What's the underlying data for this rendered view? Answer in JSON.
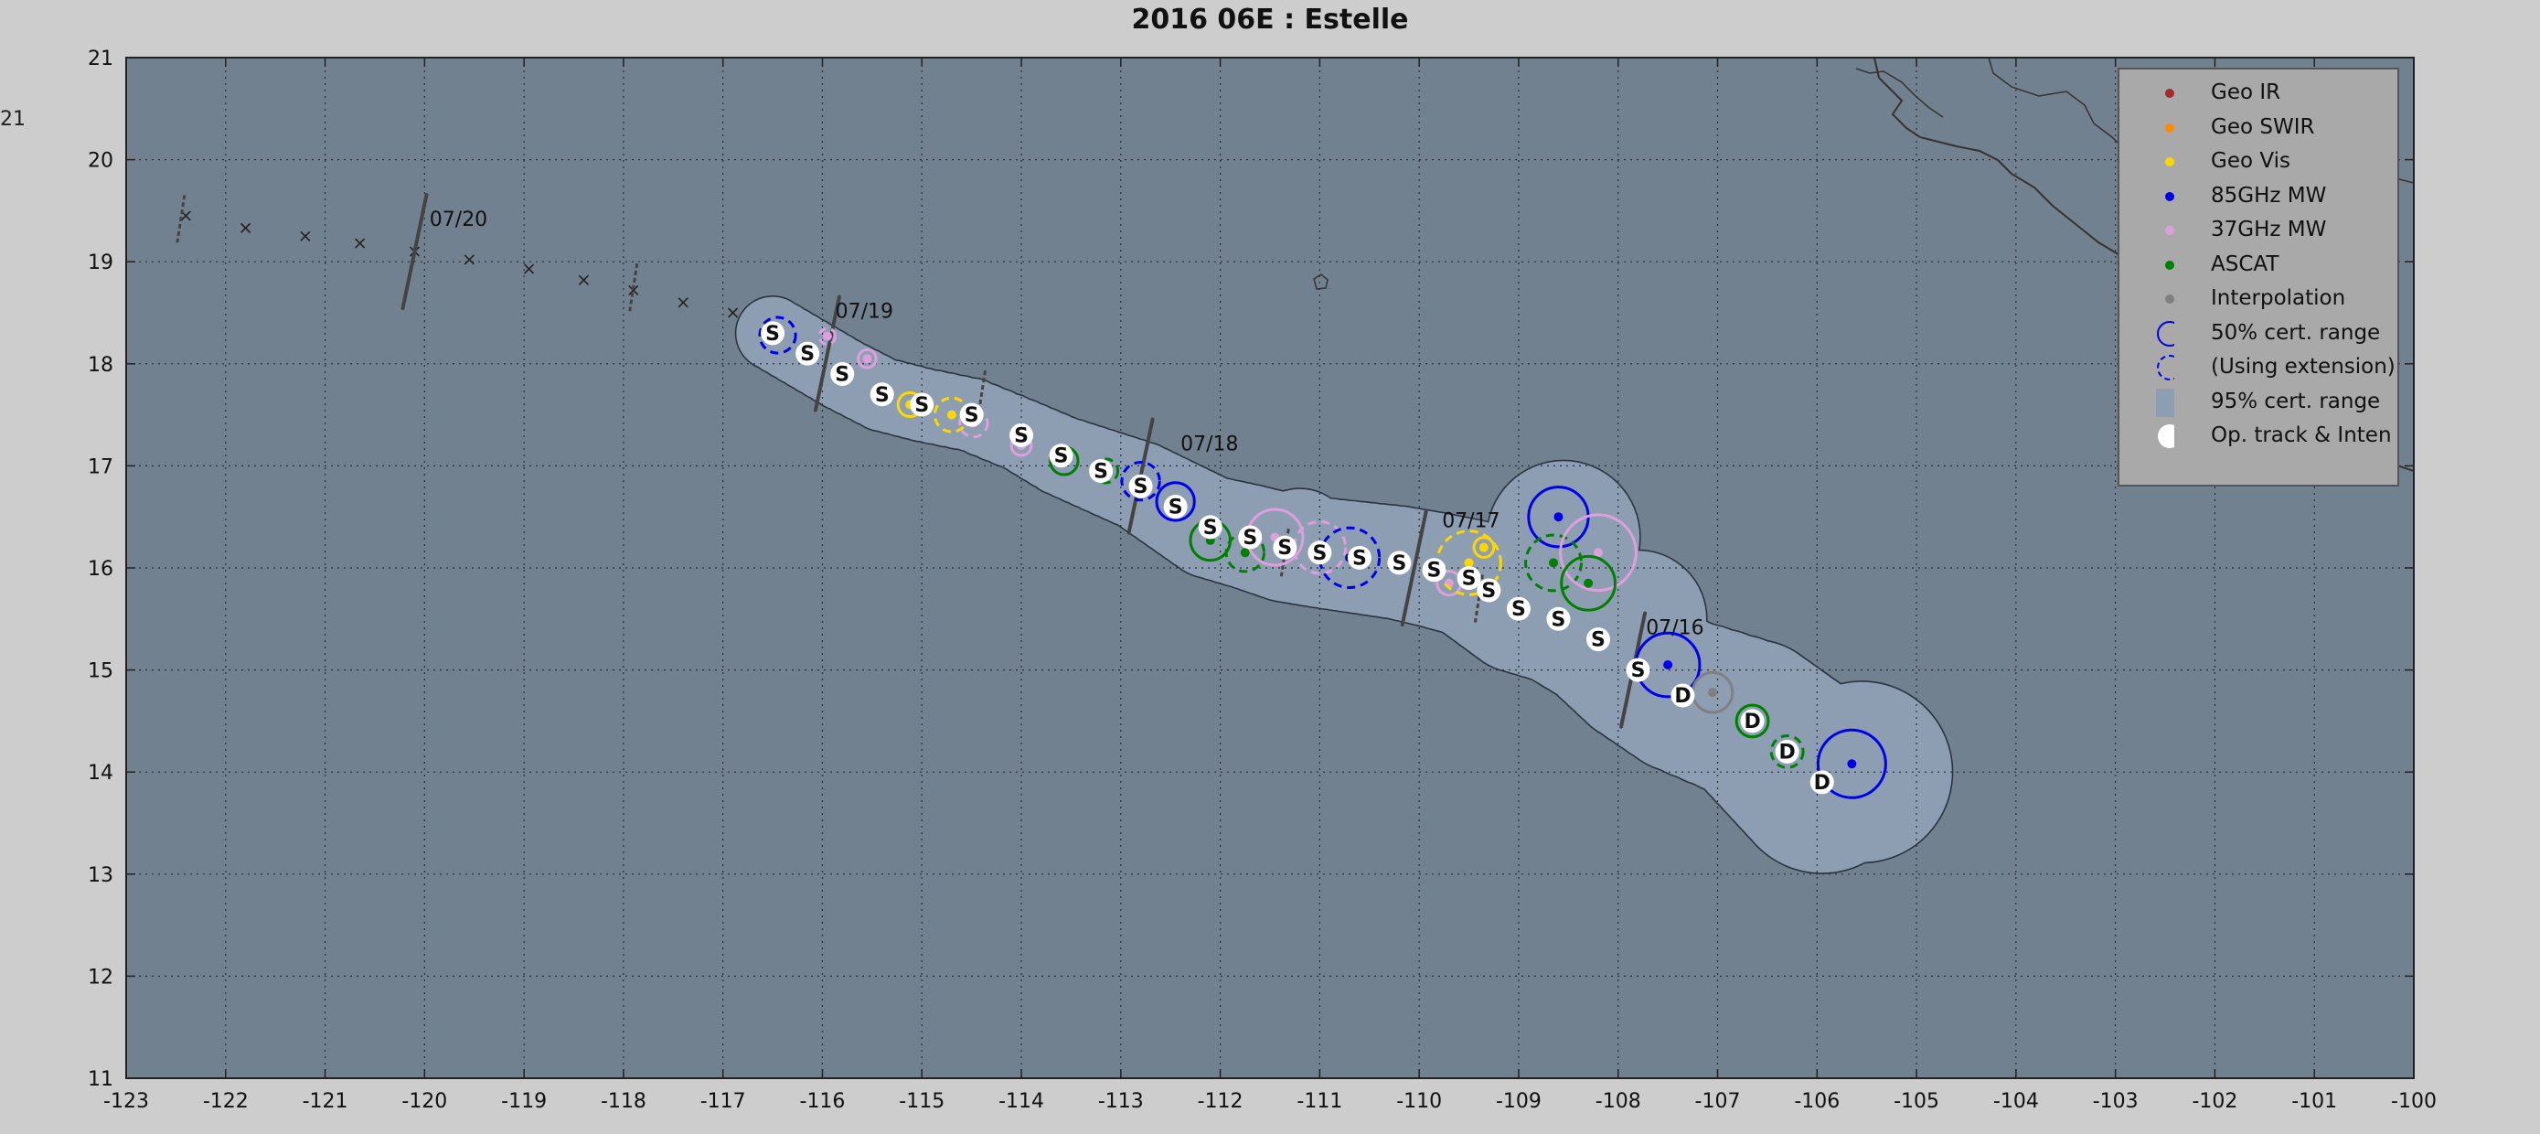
{
  "title": "2016  06E :  Estelle",
  "stray_label": "21",
  "colors": {
    "ocean": "#72818f",
    "uncertainty": "#8d9eb2",
    "land_line": "#333333",
    "geo_ir": "#a52a2a",
    "geo_swir": "#ff8c00",
    "geo_vis": "#ffd700",
    "mw85": "#0000ee",
    "mw37": "#dda0dd",
    "ascat": "#008000",
    "interp": "#808080"
  },
  "axes": {
    "lon_min": -123,
    "lon_max": -100,
    "lat_min": 11,
    "lat_max": 21,
    "lon_ticks": [
      "-123",
      "-122",
      "-121",
      "-120",
      "-119",
      "-118",
      "-117",
      "-116",
      "-115",
      "-114",
      "-113",
      "-112",
      "-111",
      "-110",
      "-109",
      "-108",
      "-107",
      "-106",
      "-105",
      "-104",
      "-103",
      "-102",
      "-101",
      "-100"
    ],
    "lat_ticks": [
      "11",
      "12",
      "13",
      "14",
      "15",
      "16",
      "17",
      "18",
      "19",
      "20",
      "21"
    ]
  },
  "legend": [
    {
      "label": "Geo IR",
      "symbol": "dot",
      "color": "#a52a2a"
    },
    {
      "label": "Geo SWIR",
      "symbol": "dot",
      "color": "#ff8c00"
    },
    {
      "label": "Geo Vis",
      "symbol": "dot",
      "color": "#ffd700"
    },
    {
      "label": "85GHz MW",
      "symbol": "dot",
      "color": "#0000ee"
    },
    {
      "label": "37GHz MW",
      "symbol": "dot",
      "color": "#dda0dd"
    },
    {
      "label": "ASCAT",
      "symbol": "dot",
      "color": "#008000"
    },
    {
      "label": "Interpolation",
      "symbol": "dot",
      "color": "#808080"
    },
    {
      "label": "50% cert. range",
      "symbol": "circle",
      "color": "#0000ee"
    },
    {
      "label": "(Using extension)",
      "symbol": "dashed-circle",
      "color": "#0000ee"
    },
    {
      "label": "95% cert. range",
      "symbol": "square",
      "color": "#8d9eb2"
    },
    {
      "label": "Op. track & Inten",
      "symbol": "white-dot",
      "color": "#ffffff"
    }
  ],
  "date_labels": [
    {
      "text": "07/20",
      "lon": -119.95,
      "lat": 19.35
    },
    {
      "text": "07/19",
      "lon": -115.87,
      "lat": 18.45
    },
    {
      "text": "07/18",
      "lon": -112.4,
      "lat": 17.15
    },
    {
      "text": "07/17",
      "lon": -109.77,
      "lat": 16.4
    },
    {
      "text": "07/16",
      "lon": -107.72,
      "lat": 15.35
    }
  ],
  "date_bars": [
    {
      "lon": -120.1,
      "lat": 19.1
    },
    {
      "lon": -115.95,
      "lat": 18.1
    },
    {
      "lon": -112.8,
      "lat": 16.9
    },
    {
      "lon": -110.05,
      "lat": 16.0
    },
    {
      "lon": -107.85,
      "lat": 15.0
    }
  ],
  "small_ticks": [
    {
      "lon": -122.45,
      "lat": 19.42
    },
    {
      "lon": -117.9,
      "lat": 18.75
    },
    {
      "lon": -114.4,
      "lat": 17.7
    },
    {
      "lon": -111.35,
      "lat": 16.15
    },
    {
      "lon": -109.4,
      "lat": 15.7
    }
  ],
  "forecast_track": [
    {
      "lon": -122.4,
      "lat": 19.45
    },
    {
      "lon": -121.8,
      "lat": 19.33
    },
    {
      "lon": -121.2,
      "lat": 19.25
    },
    {
      "lon": -120.65,
      "lat": 19.18
    },
    {
      "lon": -120.1,
      "lat": 19.1
    },
    {
      "lon": -119.55,
      "lat": 19.02
    },
    {
      "lon": -118.95,
      "lat": 18.93
    },
    {
      "lon": -118.4,
      "lat": 18.82
    },
    {
      "lon": -117.9,
      "lat": 18.72
    },
    {
      "lon": -117.4,
      "lat": 18.6
    },
    {
      "lon": -116.9,
      "lat": 18.5
    }
  ],
  "op_track": [
    {
      "lon": -116.5,
      "lat": 18.3,
      "i": "S"
    },
    {
      "lon": -116.15,
      "lat": 18.1,
      "i": "S"
    },
    {
      "lon": -115.8,
      "lat": 17.9,
      "i": "S"
    },
    {
      "lon": -115.4,
      "lat": 17.7,
      "i": "S"
    },
    {
      "lon": -115.0,
      "lat": 17.6,
      "i": "S"
    },
    {
      "lon": -114.5,
      "lat": 17.5,
      "i": "S"
    },
    {
      "lon": -114.0,
      "lat": 17.3,
      "i": "S"
    },
    {
      "lon": -113.6,
      "lat": 17.1,
      "i": "S"
    },
    {
      "lon": -113.2,
      "lat": 16.95,
      "i": "S"
    },
    {
      "lon": -112.8,
      "lat": 16.8,
      "i": "S"
    },
    {
      "lon": -112.45,
      "lat": 16.6,
      "i": "S"
    },
    {
      "lon": -112.1,
      "lat": 16.4,
      "i": "S"
    },
    {
      "lon": -111.7,
      "lat": 16.3,
      "i": "S"
    },
    {
      "lon": -111.35,
      "lat": 16.2,
      "i": "S"
    },
    {
      "lon": -111.0,
      "lat": 16.15,
      "i": "S"
    },
    {
      "lon": -110.6,
      "lat": 16.1,
      "i": "S"
    },
    {
      "lon": -110.2,
      "lat": 16.05,
      "i": "S"
    },
    {
      "lon": -109.85,
      "lat": 15.98,
      "i": "S"
    },
    {
      "lon": -109.5,
      "lat": 15.9,
      "i": "S"
    },
    {
      "lon": -109.3,
      "lat": 15.78,
      "i": "S"
    },
    {
      "lon": -109.0,
      "lat": 15.6,
      "i": "S"
    },
    {
      "lon": -108.6,
      "lat": 15.5,
      "i": "S"
    },
    {
      "lon": -108.2,
      "lat": 15.3,
      "i": "S"
    },
    {
      "lon": -107.8,
      "lat": 15.0,
      "i": "S"
    },
    {
      "lon": -107.35,
      "lat": 14.75,
      "i": "D"
    },
    {
      "lon": -106.65,
      "lat": 14.5,
      "i": "D"
    },
    {
      "lon": -106.3,
      "lat": 14.2,
      "i": "D"
    },
    {
      "lon": -105.95,
      "lat": 13.9,
      "i": "D"
    }
  ],
  "fixes": [
    {
      "type": "mw85",
      "lon": -116.45,
      "lat": 18.28,
      "r": 0.18,
      "dashed": true
    },
    {
      "type": "mw37",
      "lon": -115.95,
      "lat": 18.27,
      "r": 0.08,
      "dashed": true
    },
    {
      "type": "mw37",
      "lon": -115.55,
      "lat": 18.05,
      "r": 0.09,
      "dashed": false
    },
    {
      "type": "geo_vis",
      "lon": -115.12,
      "lat": 17.6,
      "r": 0.12,
      "dashed": false
    },
    {
      "type": "geo_vis",
      "lon": -114.7,
      "lat": 17.5,
      "r": 0.17,
      "dashed": true
    },
    {
      "type": "mw37",
      "lon": -114.48,
      "lat": 17.42,
      "r": 0.14,
      "dashed": true
    },
    {
      "type": "mw37",
      "lon": -114.0,
      "lat": 17.2,
      "r": 0.1,
      "dashed": false
    },
    {
      "type": "ascat",
      "lon": -113.57,
      "lat": 17.05,
      "r": 0.14,
      "dashed": false
    },
    {
      "type": "ascat",
      "lon": -113.15,
      "lat": 16.95,
      "r": 0.12,
      "dashed": true
    },
    {
      "type": "mw85",
      "lon": -112.8,
      "lat": 16.85,
      "r": 0.19,
      "dashed": true
    },
    {
      "type": "mw85",
      "lon": -112.45,
      "lat": 16.65,
      "r": 0.19,
      "dashed": false
    },
    {
      "type": "ascat",
      "lon": -112.1,
      "lat": 16.27,
      "r": 0.2,
      "dashed": false
    },
    {
      "type": "ascat",
      "lon": -111.75,
      "lat": 16.15,
      "r": 0.19,
      "dashed": true
    },
    {
      "type": "mw37",
      "lon": -111.45,
      "lat": 16.3,
      "r": 0.28,
      "dashed": false
    },
    {
      "type": "mw37",
      "lon": -111.0,
      "lat": 16.2,
      "r": 0.26,
      "dashed": true
    },
    {
      "type": "mw85",
      "lon": -110.7,
      "lat": 16.1,
      "r": 0.3,
      "dashed": true
    },
    {
      "type": "mw37",
      "lon": -109.7,
      "lat": 15.85,
      "r": 0.12,
      "dashed": false
    },
    {
      "type": "geo_vis",
      "lon": -109.5,
      "lat": 16.05,
      "r": 0.32,
      "dashed": true
    },
    {
      "type": "geo_vis",
      "lon": -109.35,
      "lat": 16.2,
      "r": 0.1,
      "dashed": false
    },
    {
      "type": "mw85",
      "lon": -108.6,
      "lat": 16.5,
      "r": 0.3,
      "dashed": false
    },
    {
      "type": "ascat",
      "lon": -108.65,
      "lat": 16.05,
      "r": 0.28,
      "dashed": true
    },
    {
      "type": "mw37",
      "lon": -108.2,
      "lat": 16.15,
      "r": 0.38,
      "dashed": false
    },
    {
      "type": "ascat",
      "lon": -108.3,
      "lat": 15.85,
      "r": 0.27,
      "dashed": false
    },
    {
      "type": "mw85",
      "lon": -107.5,
      "lat": 15.05,
      "r": 0.32,
      "dashed": false
    },
    {
      "type": "interp",
      "lon": -107.05,
      "lat": 14.78,
      "r": 0.2,
      "dashed": false
    },
    {
      "type": "ascat",
      "lon": -106.65,
      "lat": 14.5,
      "r": 0.16,
      "dashed": false
    },
    {
      "type": "ascat",
      "lon": -106.3,
      "lat": 14.2,
      "r": 0.16,
      "dashed": true
    },
    {
      "type": "mw85",
      "lon": -105.65,
      "lat": 14.08,
      "r": 0.34,
      "dashed": false
    }
  ]
}
